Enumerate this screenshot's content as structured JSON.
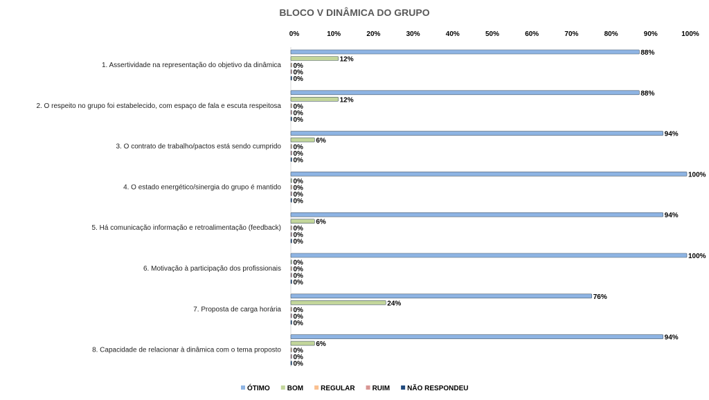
{
  "chart_data": {
    "type": "bar",
    "orientation": "horizontal",
    "title": "BLOCO V DINÂMICA DO GRUPO",
    "xlabel": "",
    "ylabel": "",
    "xlim": [
      0,
      100
    ],
    "x_ticks": [
      "0%",
      "10%",
      "20%",
      "30%",
      "40%",
      "50%",
      "60%",
      "70%",
      "80%",
      "90%",
      "100%"
    ],
    "x_axis_position": "top",
    "legend_position": "bottom",
    "categories": [
      "1. Assertividade na representação do objetivo da dinâmica",
      "2. O respeito no grupo foi estabelecido, com espaço de fala e escuta respeitosa",
      "3. O contrato de trabalho/pactos está sendo cumprido",
      "4. O estado energético/sinergia do grupo é mantido",
      "5. Há comunicação informação e retroalimentação (feedback)",
      "6. Motivação à participação dos profissionais",
      "7. Proposta de carga horária",
      "8. Capacidade de relacionar à dinâmica com o tema proposto"
    ],
    "series": [
      {
        "name": "ÓTIMO",
        "color": "#8EB4E3",
        "values": [
          88,
          88,
          94,
          100,
          94,
          100,
          76,
          94
        ]
      },
      {
        "name": "BOM",
        "color": "#C3D69B",
        "values": [
          12,
          12,
          6,
          0,
          6,
          0,
          24,
          6
        ]
      },
      {
        "name": "REGULAR",
        "color": "#FAC090",
        "values": [
          0,
          0,
          0,
          0,
          0,
          0,
          0,
          0
        ]
      },
      {
        "name": "RUIM",
        "color": "#D99694",
        "values": [
          0,
          0,
          0,
          0,
          0,
          0,
          0,
          0
        ]
      },
      {
        "name": "NÃO RESPONDEU",
        "color": "#1F497D",
        "values": [
          0,
          0,
          0,
          0,
          0,
          0,
          0,
          0
        ]
      }
    ]
  }
}
